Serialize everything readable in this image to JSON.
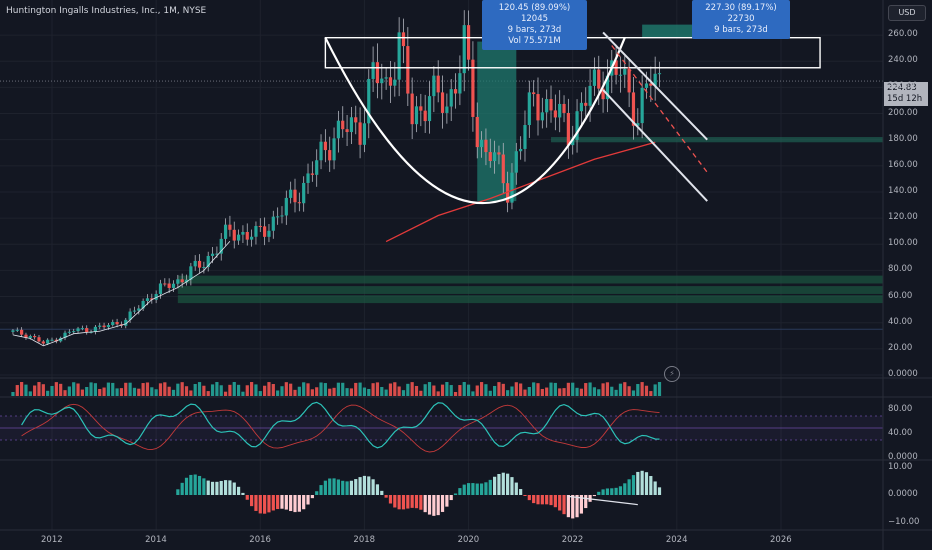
{
  "header": {
    "title": "Huntington Ingalls Industries, Inc., 1M, NYSE"
  },
  "price_scale": {
    "currency": "USD",
    "last_price": "224.83",
    "countdown": "15d 12h"
  },
  "measure_boxes": [
    {
      "line1": "120.45 (89.09%) 12045",
      "line2": "9 bars, 273d",
      "line3": "Vol 75.571M"
    },
    {
      "line1": "227.30 (89.17%) 22730",
      "line2": "9 bars, 273d"
    }
  ],
  "chart_data": [
    {
      "type": "candlestick",
      "title": "Huntington Ingalls Industries, Inc., 1M, NYSE",
      "x_ticks": [
        "2012",
        "2014",
        "2016",
        "2018",
        "2020",
        "2022",
        "2024",
        "2026"
      ],
      "y_ticks": [
        "0.0000",
        "20.00",
        "40.00",
        "60.00",
        "80.00",
        "100.00",
        "120.00",
        "140.00",
        "160.00",
        "180.00",
        "200.00",
        "220.00",
        "240.00",
        "260.00"
      ],
      "ylim": [
        0,
        270
      ],
      "last_price": 224.83,
      "close_path": [
        [
          "2011-04",
          33
        ],
        [
          "2011-08",
          30
        ],
        [
          "2011-11",
          24
        ],
        [
          "2012-02",
          28
        ],
        [
          "2012-06",
          34
        ],
        [
          "2012-12",
          36
        ],
        [
          "2013-06",
          42
        ],
        [
          "2013-12",
          62
        ],
        [
          "2014-06",
          72
        ],
        [
          "2014-12",
          86
        ],
        [
          "2015-06",
          110
        ],
        [
          "2015-12",
          106
        ],
        [
          "2016-06",
          125
        ],
        [
          "2016-12",
          150
        ],
        [
          "2017-06",
          185
        ],
        [
          "2017-12",
          190
        ],
        [
          "2018-03",
          230
        ],
        [
          "2018-06",
          220
        ],
        [
          "2018-09",
          256
        ],
        [
          "2018-12",
          195
        ],
        [
          "2019-04",
          215
        ],
        [
          "2019-08",
          205
        ],
        [
          "2019-12",
          251
        ],
        [
          "2020-03",
          180
        ],
        [
          "2020-06",
          172
        ],
        [
          "2020-10",
          140
        ],
        [
          "2020-12",
          170
        ],
        [
          "2021-04",
          210
        ],
        [
          "2021-08",
          205
        ],
        [
          "2021-12",
          186
        ],
        [
          "2022-04",
          210
        ],
        [
          "2022-08",
          230
        ],
        [
          "2022-12",
          230
        ],
        [
          "2023-04",
          200
        ],
        [
          "2023-07",
          225
        ],
        [
          "2023-09",
          224.83
        ]
      ],
      "annotations": {
        "resistance_box": [
          235,
          258
        ],
        "support_zones": [
          180,
          73,
          65,
          58,
          35
        ],
        "cup_bottom": 133,
        "moving_average": [
          [
            "2018-06",
            102
          ],
          [
            "2019-06",
            122
          ],
          [
            "2020-06",
            135
          ],
          [
            "2021-06",
            150
          ],
          [
            "2022-06",
            165
          ],
          [
            "2023-08",
            178
          ]
        ]
      }
    },
    {
      "type": "bar",
      "panel": "volume",
      "ylim": [
        0,
        1
      ]
    },
    {
      "type": "line",
      "panel": "oscillator",
      "y_ticks": [
        "0.0000",
        "40.00",
        "80.00"
      ],
      "ylim": [
        0,
        100
      ],
      "guides": [
        70,
        50,
        30
      ]
    },
    {
      "type": "bar",
      "panel": "histogram",
      "y_ticks": [
        "10.00",
        "0.0000",
        "−10.00"
      ],
      "ylim": [
        -12,
        12
      ]
    }
  ],
  "colors": {
    "bg": "#131722",
    "up": "#26a69a",
    "down": "#ef5350",
    "grid": "#1e222d",
    "wick": "#b2b5be",
    "box": "#2e6ac0",
    "ma": "#e23a3a",
    "osc_fast": "#2cc2b8",
    "osc_slow": "#c43a3a",
    "guide": "#7e57c2"
  },
  "icons": {
    "flash": "lightning-icon"
  }
}
